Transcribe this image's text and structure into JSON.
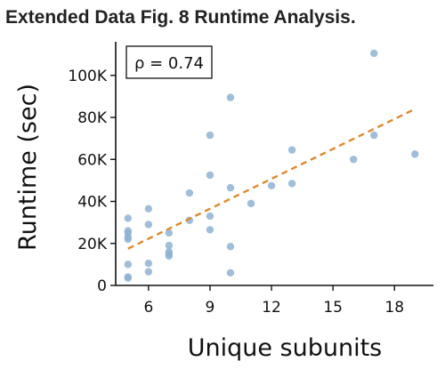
{
  "figure": {
    "title": "Extended Data Fig. 8 Runtime Analysis."
  },
  "chart_data": {
    "type": "scatter",
    "xlabel": "Unique subunits",
    "ylabel": "Runtime (sec)",
    "xlim": [
      4.4,
      19.9
    ],
    "ylim": [
      0,
      116000
    ],
    "x_ticks": [
      6,
      9,
      12,
      15,
      18
    ],
    "x_tick_labels": [
      "6",
      "9",
      "12",
      "15",
      "18"
    ],
    "y_ticks": [
      0,
      20000,
      40000,
      60000,
      80000,
      100000
    ],
    "y_tick_labels": [
      "0",
      "20K",
      "40K",
      "60K",
      "80K",
      "100K"
    ],
    "annotation": "ρ = 0.74",
    "grid": false,
    "legend": "none",
    "colors": {
      "points": "#8fb3d2",
      "trend": "#dd8a2e",
      "axis": "#111111"
    },
    "points": [
      {
        "x": 5,
        "y": 32000
      },
      {
        "x": 5,
        "y": 26000
      },
      {
        "x": 5,
        "y": 25000
      },
      {
        "x": 5,
        "y": 23000
      },
      {
        "x": 5,
        "y": 22000
      },
      {
        "x": 5,
        "y": 10000
      },
      {
        "x": 5,
        "y": 4000
      },
      {
        "x": 5,
        "y": 3500
      },
      {
        "x": 6,
        "y": 36500
      },
      {
        "x": 6,
        "y": 29000
      },
      {
        "x": 6,
        "y": 10500
      },
      {
        "x": 6,
        "y": 6500
      },
      {
        "x": 7,
        "y": 25000
      },
      {
        "x": 7,
        "y": 19000
      },
      {
        "x": 7,
        "y": 16000
      },
      {
        "x": 7,
        "y": 15000
      },
      {
        "x": 7,
        "y": 14000
      },
      {
        "x": 8,
        "y": 44000
      },
      {
        "x": 8,
        "y": 31000
      },
      {
        "x": 9,
        "y": 71500
      },
      {
        "x": 9,
        "y": 52500
      },
      {
        "x": 9,
        "y": 33000
      },
      {
        "x": 9,
        "y": 26500
      },
      {
        "x": 10,
        "y": 89500
      },
      {
        "x": 10,
        "y": 46500
      },
      {
        "x": 10,
        "y": 18500
      },
      {
        "x": 10,
        "y": 6000
      },
      {
        "x": 11,
        "y": 39000
      },
      {
        "x": 12,
        "y": 47500
      },
      {
        "x": 13,
        "y": 64500
      },
      {
        "x": 13,
        "y": 48500
      },
      {
        "x": 16,
        "y": 60000
      },
      {
        "x": 17,
        "y": 110500
      },
      {
        "x": 17,
        "y": 71500
      },
      {
        "x": 19,
        "y": 62500
      }
    ],
    "trendline": {
      "x": [
        5,
        19
      ],
      "y": [
        17500,
        84000
      ]
    }
  }
}
